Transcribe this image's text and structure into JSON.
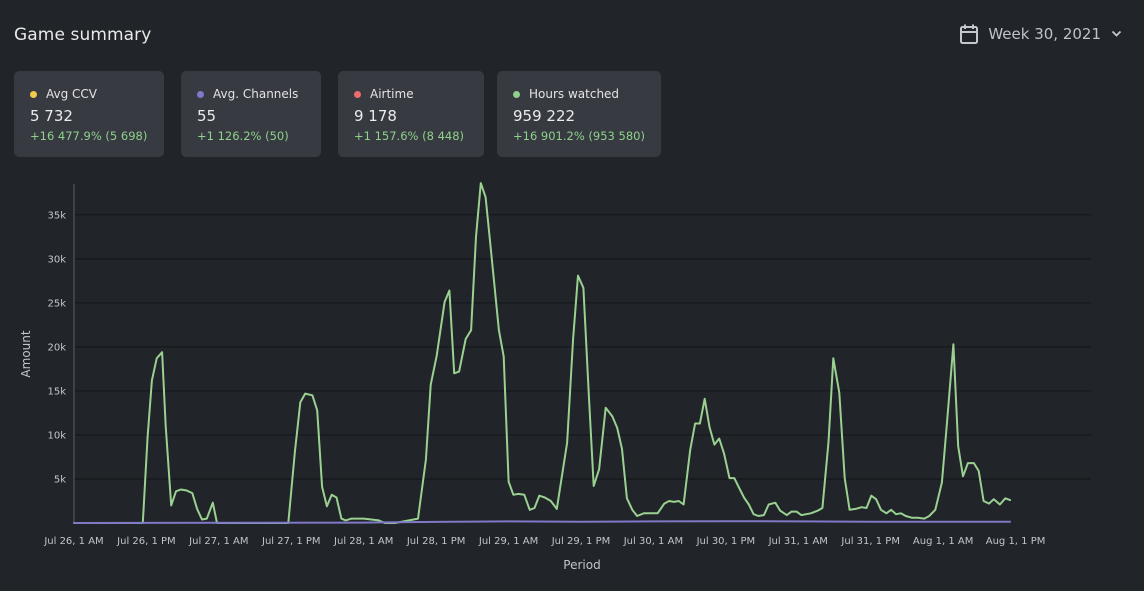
{
  "header": {
    "title": "Game summary",
    "week_label": "Week 30, 2021"
  },
  "cards": [
    {
      "label": "Avg CCV",
      "value": "5 732",
      "change": "+16 477.9% (5 698)",
      "color": "#f2c94c"
    },
    {
      "label": "Avg. Channels",
      "value": "55",
      "change": "+1 126.2% (50)",
      "color": "#8079c9"
    },
    {
      "label": "Airtime",
      "value": "9 178",
      "change": "+1 157.6% (8 448)",
      "color": "#ef6b6b"
    },
    {
      "label": "Hours watched",
      "value": "959 222",
      "change": "+16 901.2% (953 580)",
      "color": "#8fd08b"
    }
  ],
  "colors": {
    "background": "#212429",
    "card": "#373b41",
    "grid": "#15171a",
    "axis_text": "#c2c5c9",
    "green_series": "#9ad191",
    "purple_series": "#7e78c6"
  },
  "chart_data": {
    "type": "line",
    "xlabel": "Period",
    "ylabel": "Amount",
    "ylim": [
      0,
      38500
    ],
    "grid": true,
    "y_ticks": [
      {
        "value": 5000,
        "label": "5k"
      },
      {
        "value": 10000,
        "label": "10k"
      },
      {
        "value": 15000,
        "label": "15k"
      },
      {
        "value": 20000,
        "label": "20k"
      },
      {
        "value": 25000,
        "label": "25k"
      },
      {
        "value": 30000,
        "label": "30k"
      },
      {
        "value": 35000,
        "label": "35k"
      }
    ],
    "x_range": [
      0,
      168.5
    ],
    "x_ticks": [
      {
        "hours": 0,
        "label": "Jul 26, 1 AM"
      },
      {
        "hours": 12,
        "label": "Jul 26, 1 PM"
      },
      {
        "hours": 24,
        "label": "Jul 27, 1 AM"
      },
      {
        "hours": 36,
        "label": "Jul 27, 1 PM"
      },
      {
        "hours": 48,
        "label": "Jul 28, 1 AM"
      },
      {
        "hours": 60,
        "label": "Jul 28, 1 PM"
      },
      {
        "hours": 72,
        "label": "Jul 29, 1 AM"
      },
      {
        "hours": 84,
        "label": "Jul 29, 1 PM"
      },
      {
        "hours": 96,
        "label": "Jul 30, 1 AM"
      },
      {
        "hours": 108,
        "label": "Jul 30, 1 PM"
      },
      {
        "hours": 120,
        "label": "Jul 31, 1 AM"
      },
      {
        "hours": 132,
        "label": "Jul 31, 1 PM"
      },
      {
        "hours": 144,
        "label": "Aug 1, 1 AM"
      },
      {
        "hours": 156,
        "label": "Aug 1, 1 PM"
      }
    ],
    "series": [
      {
        "color": "#9ad191",
        "points": [
          [
            0,
            0
          ],
          [
            11.4,
            0
          ],
          [
            12.2,
            9800
          ],
          [
            12.9,
            16200
          ],
          [
            13.7,
            18700
          ],
          [
            14.6,
            19400
          ],
          [
            15.2,
            11000
          ],
          [
            16.1,
            2000
          ],
          [
            16.9,
            3600
          ],
          [
            17.7,
            3800
          ],
          [
            18.6,
            3700
          ],
          [
            19.6,
            3400
          ],
          [
            20.4,
            1600
          ],
          [
            21.2,
            400
          ],
          [
            22,
            500
          ],
          [
            23,
            2300
          ],
          [
            23.7,
            0
          ],
          [
            35.5,
            0
          ],
          [
            36.6,
            8100
          ],
          [
            37.5,
            13700
          ],
          [
            38.3,
            14700
          ],
          [
            39.5,
            14500
          ],
          [
            40.3,
            12800
          ],
          [
            41.1,
            4100
          ],
          [
            41.9,
            1900
          ],
          [
            42.7,
            3200
          ],
          [
            43.5,
            2900
          ],
          [
            44.3,
            500
          ],
          [
            45,
            300
          ],
          [
            46,
            500
          ],
          [
            48,
            500
          ],
          [
            50.5,
            300
          ],
          [
            51.5,
            0
          ],
          [
            53.2,
            0
          ],
          [
            55.5,
            300
          ],
          [
            57,
            500
          ],
          [
            58.3,
            7200
          ],
          [
            59.1,
            15700
          ],
          [
            60.1,
            19000
          ],
          [
            61.4,
            25100
          ],
          [
            62.2,
            26400
          ],
          [
            63,
            17000
          ],
          [
            63.8,
            17200
          ],
          [
            64.9,
            20900
          ],
          [
            65.8,
            21900
          ],
          [
            66.6,
            32500
          ],
          [
            67.4,
            38600
          ],
          [
            68.2,
            37000
          ],
          [
            69.1,
            30800
          ],
          [
            70.4,
            21900
          ],
          [
            71.2,
            18900
          ],
          [
            72,
            4700
          ],
          [
            72.8,
            3200
          ],
          [
            73.6,
            3300
          ],
          [
            74.6,
            3200
          ],
          [
            75.5,
            1500
          ],
          [
            76.3,
            1700
          ],
          [
            77.1,
            3100
          ],
          [
            78,
            2900
          ],
          [
            79,
            2500
          ],
          [
            80,
            1600
          ],
          [
            81.7,
            9100
          ],
          [
            82.7,
            20900
          ],
          [
            83.5,
            28100
          ],
          [
            84.4,
            26700
          ],
          [
            85.3,
            14600
          ],
          [
            86.1,
            4200
          ],
          [
            87,
            6100
          ],
          [
            88.1,
            13100
          ],
          [
            89.2,
            12100
          ],
          [
            90,
            10800
          ],
          [
            90.8,
            8400
          ],
          [
            91.6,
            2800
          ],
          [
            92.5,
            1500
          ],
          [
            93.3,
            800
          ],
          [
            94.4,
            1100
          ],
          [
            95.5,
            1100
          ],
          [
            96.7,
            1100
          ],
          [
            97.8,
            2200
          ],
          [
            98.6,
            2500
          ],
          [
            99.4,
            2400
          ],
          [
            100.2,
            2500
          ],
          [
            101,
            2100
          ],
          [
            102.1,
            8300
          ],
          [
            102.9,
            11300
          ],
          [
            103.7,
            11300
          ],
          [
            104.5,
            14100
          ],
          [
            105.3,
            10900
          ],
          [
            106.1,
            8900
          ],
          [
            106.9,
            9600
          ],
          [
            107.7,
            7900
          ],
          [
            108.6,
            5100
          ],
          [
            109.4,
            5100
          ],
          [
            110.2,
            4000
          ],
          [
            111,
            2900
          ],
          [
            111.8,
            2100
          ],
          [
            112.6,
            1000
          ],
          [
            113.4,
            800
          ],
          [
            114.3,
            900
          ],
          [
            115.1,
            2100
          ],
          [
            116.2,
            2300
          ],
          [
            117,
            1400
          ],
          [
            118.1,
            900
          ],
          [
            118.9,
            1300
          ],
          [
            119.7,
            1300
          ],
          [
            120.5,
            900
          ],
          [
            121.3,
            1000
          ],
          [
            122.1,
            1100
          ],
          [
            123.2,
            1400
          ],
          [
            124,
            1700
          ],
          [
            125,
            9200
          ],
          [
            125.8,
            18700
          ],
          [
            126.8,
            14800
          ],
          [
            127.7,
            5100
          ],
          [
            128.5,
            1500
          ],
          [
            129.5,
            1600
          ],
          [
            130.5,
            1800
          ],
          [
            131.3,
            1700
          ],
          [
            132.1,
            3100
          ],
          [
            132.9,
            2700
          ],
          [
            133.7,
            1500
          ],
          [
            134.6,
            1100
          ],
          [
            135.4,
            1500
          ],
          [
            136.2,
            1000
          ],
          [
            137,
            1100
          ],
          [
            137.8,
            800
          ],
          [
            138.8,
            600
          ],
          [
            139.8,
            600
          ],
          [
            140.9,
            500
          ],
          [
            141.7,
            800
          ],
          [
            142.7,
            1500
          ],
          [
            143.8,
            4600
          ],
          [
            144.6,
            11000
          ],
          [
            145.7,
            20300
          ],
          [
            146.5,
            8700
          ],
          [
            147.3,
            5300
          ],
          [
            148.1,
            6800
          ],
          [
            149.1,
            6800
          ],
          [
            149.9,
            5900
          ],
          [
            150.7,
            2500
          ],
          [
            151.6,
            2200
          ],
          [
            152.4,
            2700
          ],
          [
            153.4,
            2100
          ],
          [
            154.3,
            2800
          ],
          [
            155.1,
            2600
          ]
        ]
      },
      {
        "color": "#7e78c6",
        "points": [
          [
            0,
            0
          ],
          [
            48,
            40
          ],
          [
            60,
            120
          ],
          [
            72,
            180
          ],
          [
            84,
            140
          ],
          [
            96,
            180
          ],
          [
            108,
            200
          ],
          [
            120,
            180
          ],
          [
            132,
            150
          ],
          [
            144,
            140
          ],
          [
            155.1,
            140
          ]
        ]
      }
    ]
  }
}
